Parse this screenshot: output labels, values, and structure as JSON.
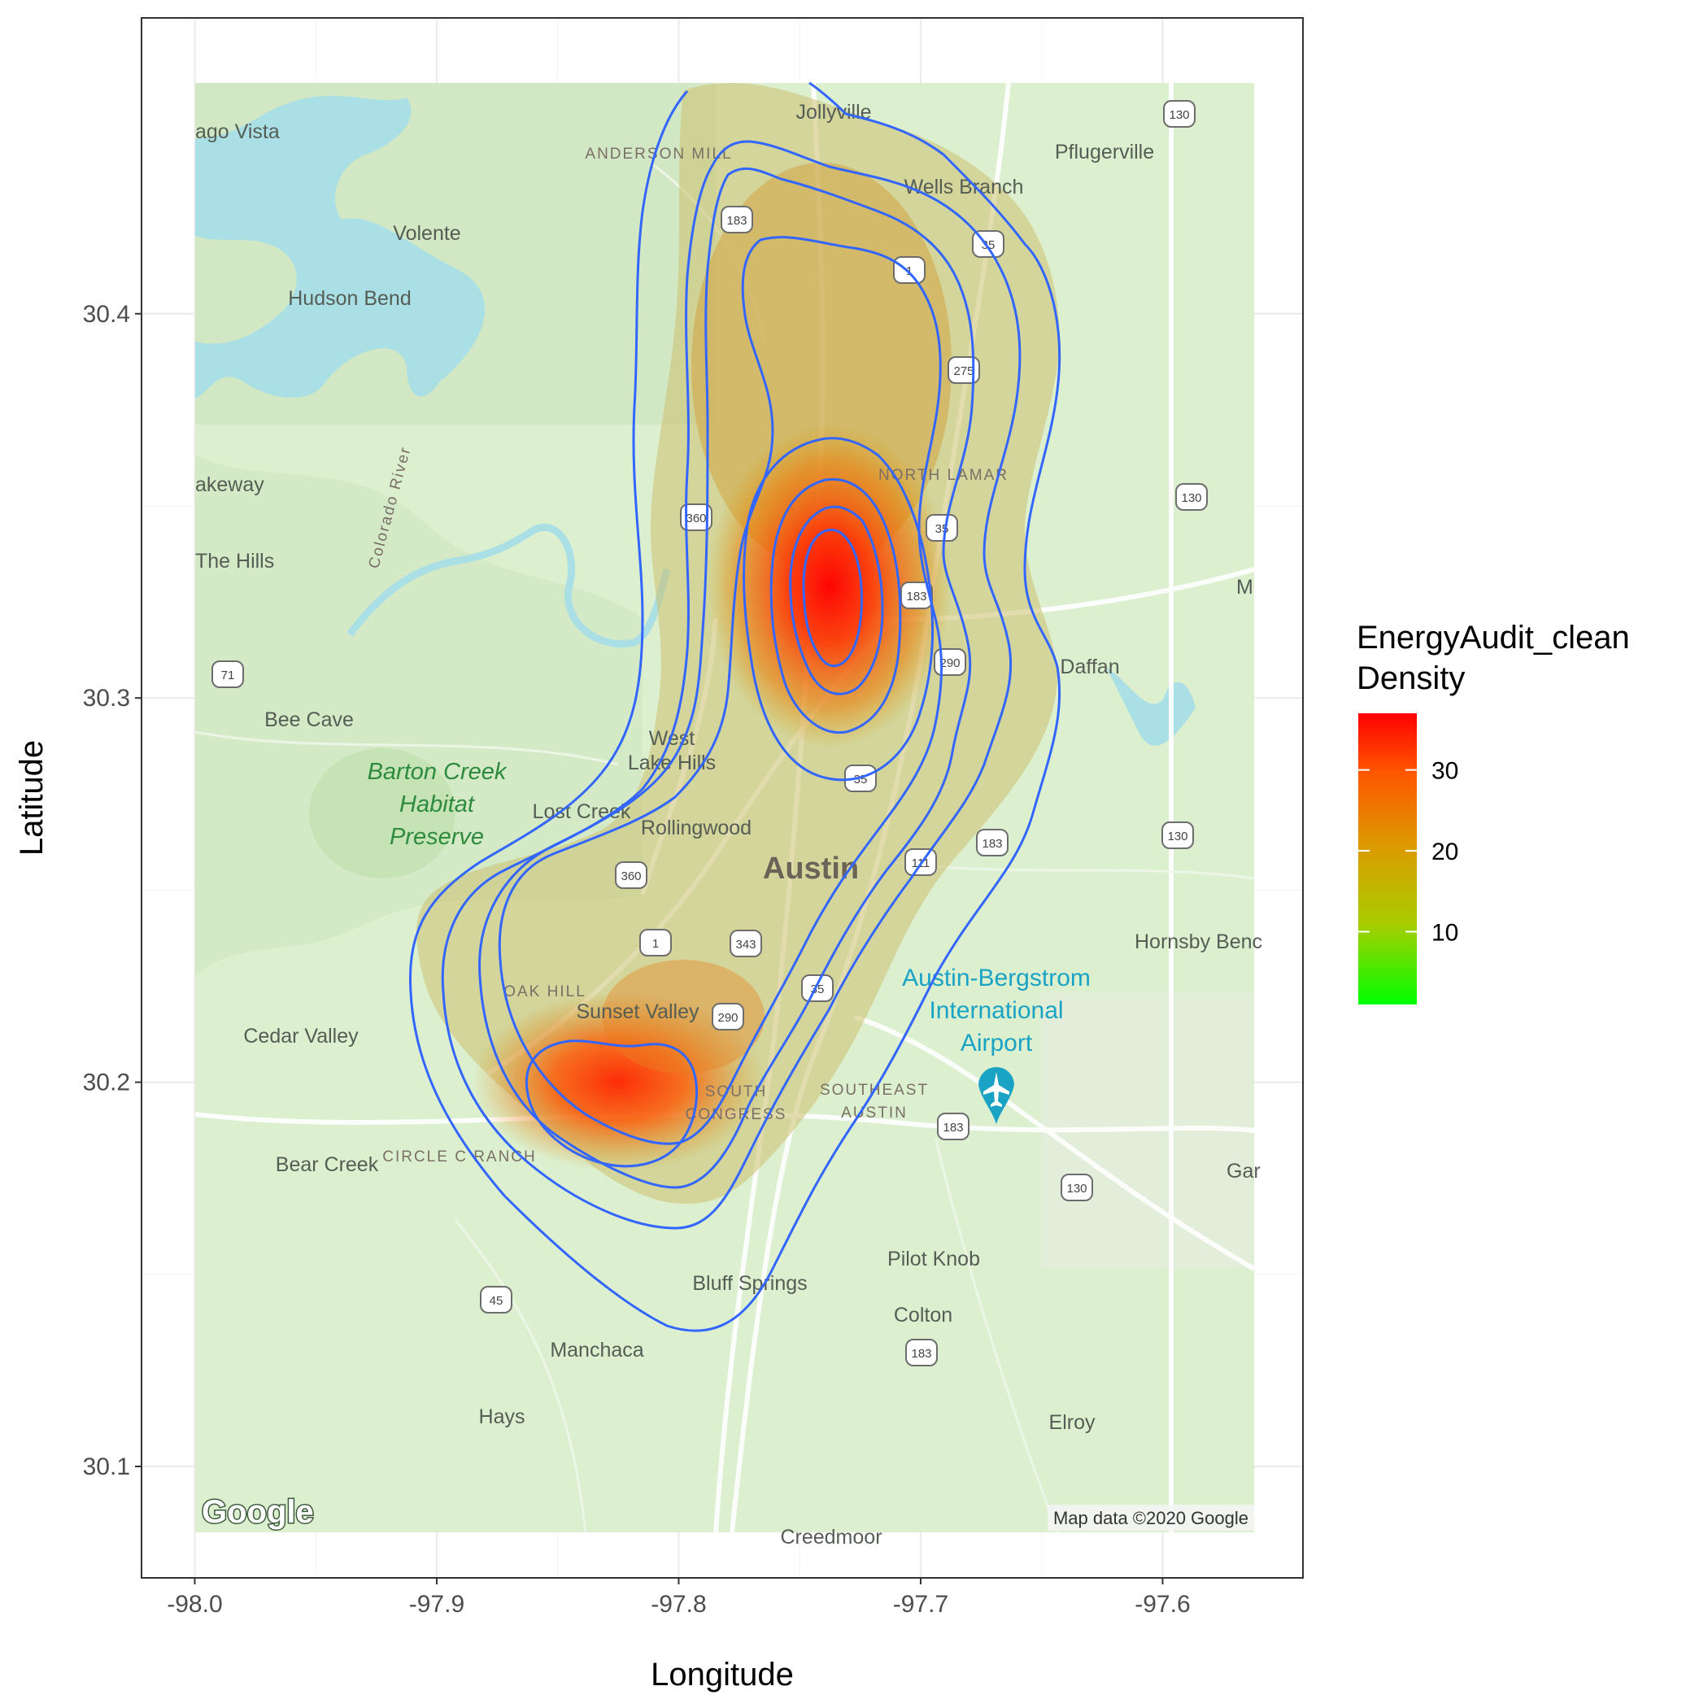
{
  "chart_data": {
    "type": "heatmap",
    "subtype": "2d-density-contour-over-basemap",
    "xlabel": "Longitude",
    "ylabel": "Latitude",
    "xlim": [
      -98.022,
      -97.542
    ],
    "ylim": [
      30.071,
      30.477
    ],
    "x_ticks": [
      -98.0,
      -97.9,
      -97.8,
      -97.7,
      -97.6
    ],
    "x_tick_labels": [
      "-98.0",
      "-97.9",
      "-97.8",
      "-97.7",
      "-97.6"
    ],
    "y_ticks": [
      30.1,
      30.2,
      30.3,
      30.4
    ],
    "y_tick_labels": [
      "30.1",
      "30.2",
      "30.3",
      "30.4"
    ],
    "grid": true,
    "legend": {
      "title_line1": "EnergyAudit_clean",
      "title_line2": "Density",
      "position": "right",
      "range": [
        1,
        37
      ],
      "ticks": [
        10,
        20,
        30
      ],
      "tick_labels": [
        "10",
        "20",
        "30"
      ],
      "colors": [
        "#00ff00",
        "#ff0000"
      ]
    },
    "density_peaks": [
      {
        "lon": -97.735,
        "lat": 30.338,
        "value": 37
      },
      {
        "lon": -97.82,
        "lat": 30.2,
        "value": 34
      }
    ],
    "contour_color": "#3366ff",
    "map_region": {
      "lon": [
        -98.0,
        -97.56
      ],
      "lat": [
        30.09,
        30.465
      ]
    }
  },
  "map_labels": {
    "jollyville": "Jollyville",
    "anderson_mill": "ANDERSON MILL",
    "pflugerville": "Pflugerville",
    "wells_branch": "Wells Branch",
    "lago_vista": "ago Vista",
    "volente": "Volente",
    "hudson_bend": "Hudson Bend",
    "lakeway": "akeway",
    "the_hills": "The Hills",
    "colorado_river": "Colorado River",
    "north_lamar": "NORTH LAMAR",
    "daffan": "Daffan",
    "manor": "M",
    "bee_cave": "Bee Cave",
    "west": "West",
    "lake_hills": "Lake Hills",
    "barton_creek_1": "Barton Creek",
    "barton_creek_2": "Habitat",
    "barton_creek_3": "Preserve",
    "lost_creek": "Lost Creek",
    "rollingwood": "Rollingwood",
    "austin": "Austin",
    "hornsby_bend": "Hornsby Benc",
    "airport_1": "Austin-Bergstrom",
    "airport_2": "International",
    "airport_3": "Airport",
    "oak_hill": "OAK HILL",
    "sunset_valley": "Sunset Valley",
    "cedar_valley": "Cedar Valley",
    "south_congress_1": "SOUTH",
    "south_congress_2": "CONGRESS",
    "southeast_austin_1": "SOUTHEAST",
    "southeast_austin_2": "AUSTIN",
    "bear_creek": "Bear Creek",
    "circle_c_ranch": "CIRCLE C RANCH",
    "garfield": "Gar",
    "pilot_knob": "Pilot Knob",
    "bluff_springs": "Bluff Springs",
    "colton": "Colton",
    "manchaca": "Manchaca",
    "hays": "Hays",
    "elroy": "Elroy",
    "creedmoor": "Creedmoor"
  },
  "shields": [
    "130",
    "183",
    "35",
    "1",
    "275",
    "130",
    "360",
    "35",
    "183",
    "290",
    "71",
    "35",
    "360",
    "1",
    "343",
    "290",
    "35",
    "111",
    "183",
    "130",
    "183",
    "130",
    "45",
    "183"
  ],
  "attribution": "Map data ©2020 Google",
  "logo": "Google"
}
